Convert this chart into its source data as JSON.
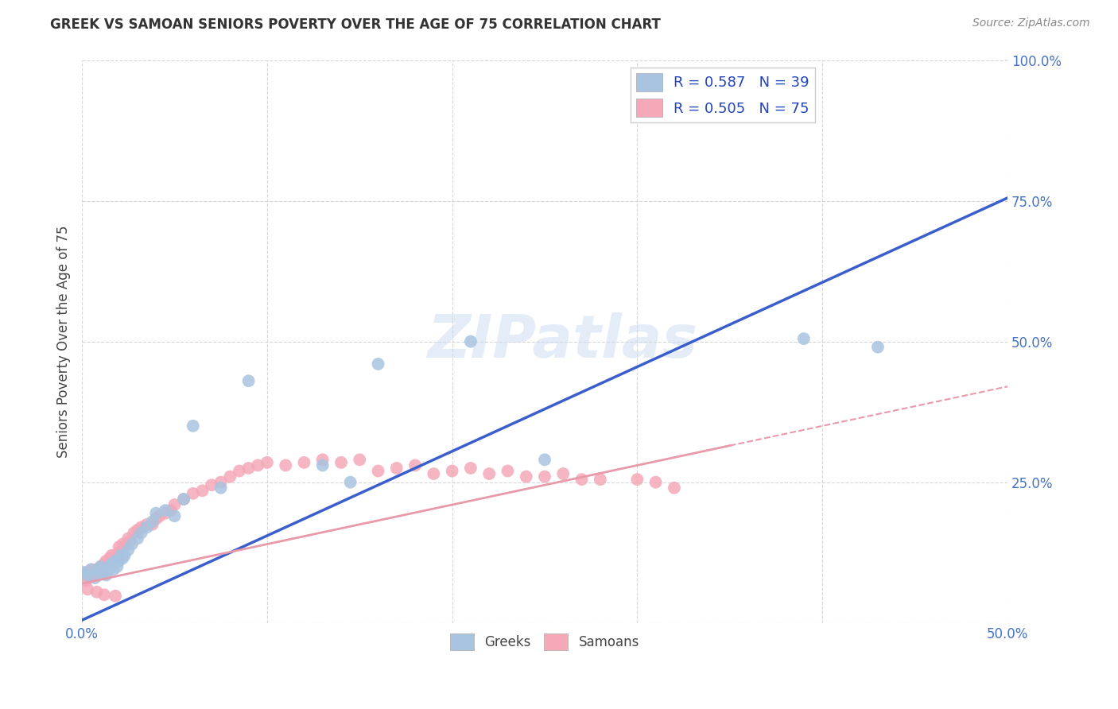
{
  "title": "GREEK VS SAMOAN SENIORS POVERTY OVER THE AGE OF 75 CORRELATION CHART",
  "source": "Source: ZipAtlas.com",
  "ylabel": "Seniors Poverty Over the Age of 75",
  "xlim": [
    0.0,
    0.5
  ],
  "ylim": [
    0.0,
    1.0
  ],
  "xticks": [
    0.0,
    0.1,
    0.2,
    0.3,
    0.4,
    0.5
  ],
  "yticks": [
    0.0,
    0.25,
    0.5,
    0.75,
    1.0
  ],
  "xticklabels": [
    "0.0%",
    "",
    "",
    "",
    "",
    "50.0%"
  ],
  "yticklabels": [
    "",
    "25.0%",
    "50.0%",
    "75.0%",
    "100.0%"
  ],
  "greek_R": 0.587,
  "greek_N": 39,
  "samoan_R": 0.505,
  "samoan_N": 75,
  "greek_color": "#a8c4e0",
  "samoan_color": "#f4a8b8",
  "greek_line_color": "#3a5fcd",
  "samoan_line_color": "#e899aa",
  "watermark": "ZIPatlas",
  "background_color": "#ffffff",
  "grid_color": "#cccccc",
  "title_color": "#333333",
  "tick_label_color": "#4472c4",
  "greek_line_slope": 1.5,
  "greek_line_intercept": 0.005,
  "samoan_line_slope": 0.7,
  "samoan_line_intercept": 0.07,
  "greek_scatter_x": [
    0.001,
    0.003,
    0.005,
    0.007,
    0.009,
    0.01,
    0.011,
    0.012,
    0.013,
    0.014,
    0.015,
    0.016,
    0.017,
    0.018,
    0.019,
    0.02,
    0.021,
    0.022,
    0.023,
    0.025,
    0.027,
    0.03,
    0.032,
    0.035,
    0.038,
    0.04,
    0.045,
    0.05,
    0.055,
    0.06,
    0.075,
    0.09,
    0.13,
    0.145,
    0.16,
    0.21,
    0.25,
    0.39,
    0.43
  ],
  "greek_scatter_y": [
    0.09,
    0.085,
    0.095,
    0.08,
    0.095,
    0.1,
    0.088,
    0.092,
    0.085,
    0.095,
    0.1,
    0.105,
    0.095,
    0.11,
    0.1,
    0.11,
    0.12,
    0.115,
    0.12,
    0.13,
    0.14,
    0.15,
    0.16,
    0.17,
    0.18,
    0.195,
    0.2,
    0.19,
    0.22,
    0.35,
    0.24,
    0.43,
    0.28,
    0.25,
    0.46,
    0.5,
    0.29,
    0.505,
    0.49
  ],
  "samoan_scatter_x": [
    0.001,
    0.002,
    0.003,
    0.004,
    0.005,
    0.005,
    0.006,
    0.007,
    0.008,
    0.008,
    0.009,
    0.01,
    0.01,
    0.011,
    0.012,
    0.012,
    0.013,
    0.014,
    0.015,
    0.015,
    0.016,
    0.017,
    0.018,
    0.019,
    0.02,
    0.02,
    0.022,
    0.023,
    0.025,
    0.026,
    0.028,
    0.03,
    0.032,
    0.035,
    0.038,
    0.04,
    0.042,
    0.045,
    0.048,
    0.05,
    0.055,
    0.06,
    0.065,
    0.07,
    0.075,
    0.08,
    0.085,
    0.09,
    0.095,
    0.1,
    0.11,
    0.12,
    0.13,
    0.14,
    0.15,
    0.16,
    0.17,
    0.18,
    0.19,
    0.2,
    0.21,
    0.22,
    0.23,
    0.24,
    0.25,
    0.26,
    0.27,
    0.28,
    0.3,
    0.31,
    0.32,
    0.003,
    0.008,
    0.012,
    0.018
  ],
  "samoan_scatter_y": [
    0.085,
    0.075,
    0.09,
    0.08,
    0.095,
    0.085,
    0.09,
    0.085,
    0.095,
    0.09,
    0.085,
    0.095,
    0.1,
    0.095,
    0.105,
    0.1,
    0.11,
    0.105,
    0.115,
    0.11,
    0.12,
    0.115,
    0.12,
    0.115,
    0.125,
    0.135,
    0.14,
    0.135,
    0.15,
    0.145,
    0.16,
    0.165,
    0.17,
    0.175,
    0.175,
    0.185,
    0.19,
    0.195,
    0.2,
    0.21,
    0.22,
    0.23,
    0.235,
    0.245,
    0.25,
    0.26,
    0.27,
    0.275,
    0.28,
    0.285,
    0.28,
    0.285,
    0.29,
    0.285,
    0.29,
    0.27,
    0.275,
    0.28,
    0.265,
    0.27,
    0.275,
    0.265,
    0.27,
    0.26,
    0.26,
    0.265,
    0.255,
    0.255,
    0.255,
    0.25,
    0.24,
    0.06,
    0.055,
    0.05,
    0.048
  ]
}
